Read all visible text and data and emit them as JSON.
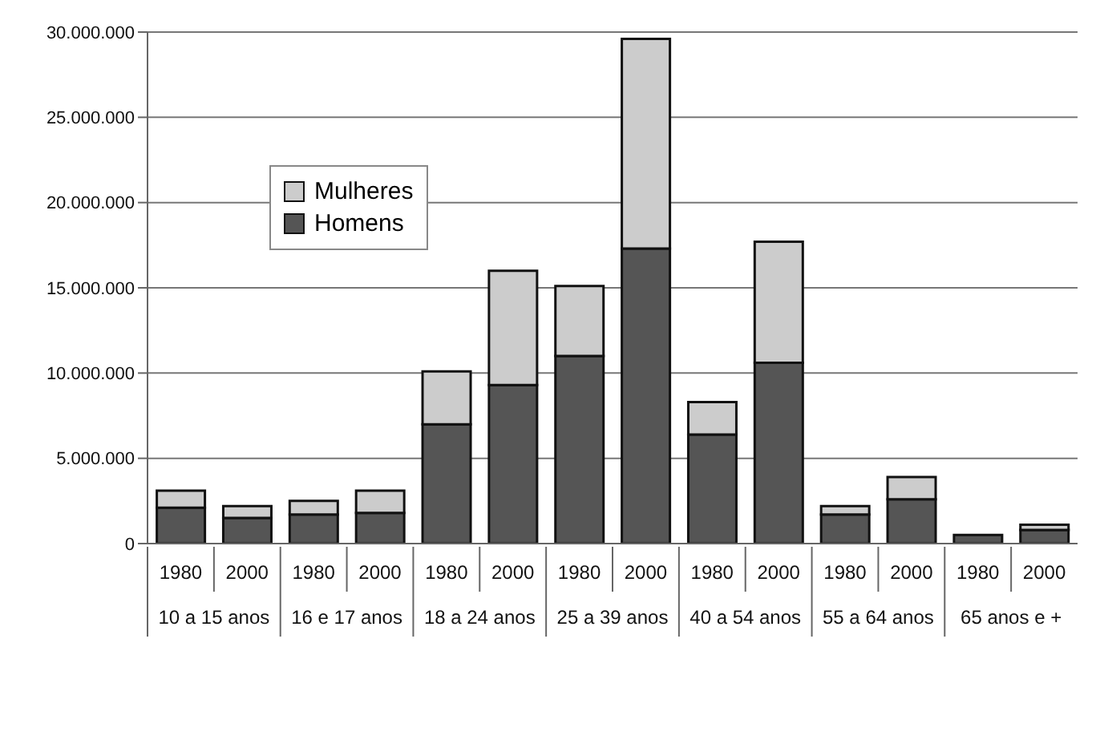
{
  "chart_data": {
    "type": "bar",
    "stacked": true,
    "categories": [
      "1980",
      "2000",
      "1980",
      "2000",
      "1980",
      "2000",
      "1980",
      "2000",
      "1980",
      "2000",
      "1980",
      "2000",
      "1980",
      "2000"
    ],
    "annotations": [
      "10 a 15 anos",
      "16 e 17 anos",
      "18 a 24 anos",
      "25 a 39 anos",
      "40 a 54 anos",
      "55 a 64 anos",
      "65 anos e +"
    ],
    "series": [
      {
        "name": "Homens",
        "color": "#555555",
        "values": [
          2100000,
          1500000,
          1700000,
          1800000,
          7000000,
          9300000,
          11000000,
          17300000,
          6400000,
          10600000,
          1700000,
          2600000,
          500000,
          800000
        ]
      },
      {
        "name": "Mulheres",
        "color": "#cccccc",
        "values": [
          1000000,
          700000,
          800000,
          1300000,
          3100000,
          6700000,
          4100000,
          12300000,
          1900000,
          7100000,
          500000,
          1300000,
          0,
          300000
        ]
      }
    ],
    "ylim": [
      0,
      30000000
    ],
    "yticks": [
      {
        "value": 0,
        "label": "0"
      },
      {
        "value": 5000000,
        "label": "5.000.000"
      },
      {
        "value": 10000000,
        "label": "10.000.000"
      },
      {
        "value": 15000000,
        "label": "15.000.000"
      },
      {
        "value": 20000000,
        "label": "20.000.000"
      },
      {
        "value": 25000000,
        "label": "25.000.000"
      },
      {
        "value": 30000000,
        "label": "30.000.000"
      }
    ],
    "grid": "y",
    "legend": "top left"
  }
}
